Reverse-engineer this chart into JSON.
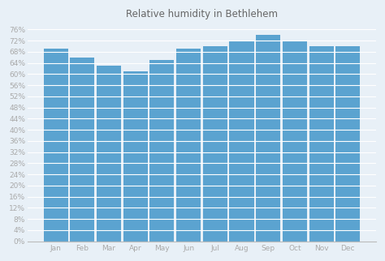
{
  "title": "Relative humidity in Bethlehem",
  "months": [
    "Jan",
    "Feb",
    "Mar",
    "Apr",
    "May",
    "Jun",
    "Jul",
    "Aug",
    "Sep",
    "Oct",
    "Nov",
    "Dec"
  ],
  "values": [
    69,
    66,
    63,
    61,
    65,
    69,
    70,
    72,
    74,
    72,
    70,
    70
  ],
  "bar_color": "#5ba3d0",
  "background_color": "#e8f0f7",
  "grid_color": "#ffffff",
  "yticks": [
    0,
    4,
    8,
    12,
    16,
    20,
    24,
    28,
    32,
    36,
    40,
    44,
    48,
    52,
    56,
    60,
    64,
    68,
    72,
    76
  ],
  "ylim": [
    0,
    78
  ],
  "title_fontsize": 8.5,
  "tick_fontsize": 6.5,
  "tick_color": "#aaaaaa",
  "bar_width": 0.92,
  "spine_color": "#bbbbbb"
}
